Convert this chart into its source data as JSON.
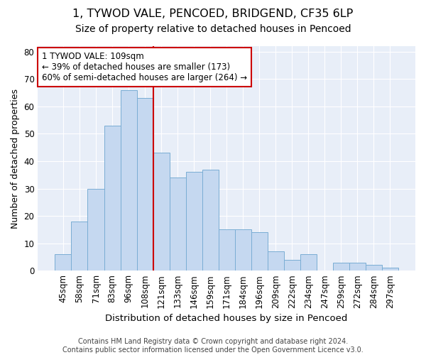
{
  "title1": "1, TYWOD VALE, PENCOED, BRIDGEND, CF35 6LP",
  "title2": "Size of property relative to detached houses in Pencoed",
  "xlabel": "Distribution of detached houses by size in Pencoed",
  "ylabel": "Number of detached properties",
  "categories": [
    "45sqm",
    "58sqm",
    "71sqm",
    "83sqm",
    "96sqm",
    "108sqm",
    "121sqm",
    "133sqm",
    "146sqm",
    "159sqm",
    "171sqm",
    "184sqm",
    "196sqm",
    "209sqm",
    "222sqm",
    "234sqm",
    "247sqm",
    "259sqm",
    "272sqm",
    "284sqm",
    "297sqm"
  ],
  "values": [
    6,
    18,
    30,
    53,
    66,
    63,
    43,
    34,
    36,
    37,
    15,
    15,
    14,
    7,
    4,
    6,
    0,
    3,
    3,
    2,
    1
  ],
  "bar_color": "#c5d8f0",
  "bar_edge_color": "#7aadd4",
  "background_color": "#e8eef8",
  "grid_color": "#ffffff",
  "vline_color": "#cc0000",
  "vline_position": 5.5,
  "annotation_box_text": "1 TYWOD VALE: 109sqm\n← 39% of detached houses are smaller (173)\n60% of semi-detached houses are larger (264) →",
  "footer": "Contains HM Land Registry data © Crown copyright and database right 2024.\nContains public sector information licensed under the Open Government Licence v3.0.",
  "ylim": [
    0,
    82
  ],
  "yticks": [
    0,
    10,
    20,
    30,
    40,
    50,
    60,
    70,
    80
  ],
  "title1_fontsize": 11.5,
  "title2_fontsize": 10,
  "xlabel_fontsize": 9.5,
  "ylabel_fontsize": 9,
  "tick_fontsize": 8.5,
  "annot_fontsize": 8.5,
  "footer_fontsize": 7
}
